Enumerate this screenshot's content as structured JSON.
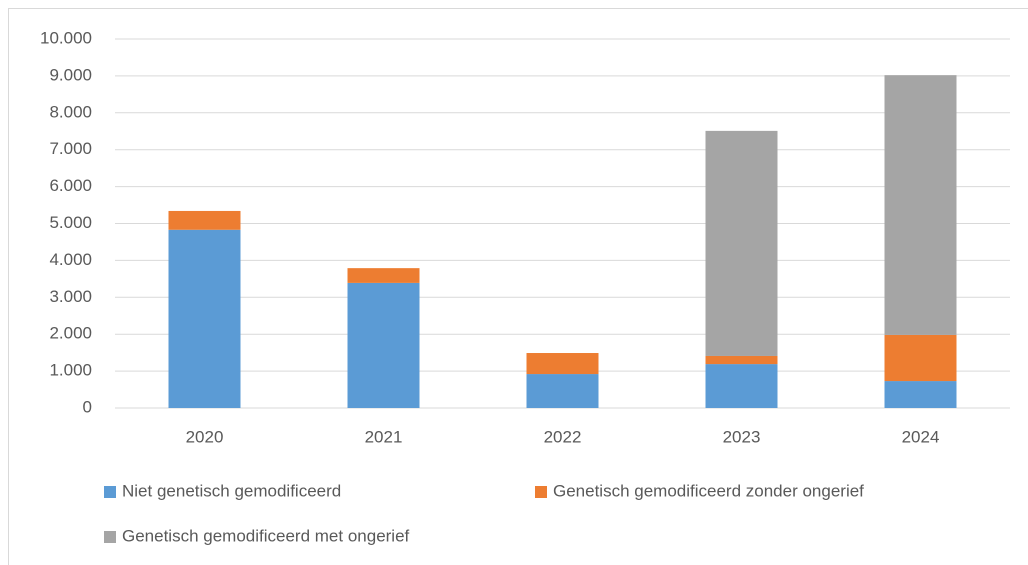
{
  "chart_data": {
    "type": "stacked_bar",
    "categories": [
      "2020",
      "2021",
      "2022",
      "2023",
      "2024"
    ],
    "series": [
      {
        "name": "Niet genetisch gemodificeerd",
        "color": "#5b9bd5",
        "values": [
          4830,
          3390,
          920,
          1190,
          730
        ]
      },
      {
        "name": "Genetisch gemodificeerd zonder ongerief",
        "color": "#ed7d31",
        "values": [
          510,
          400,
          570,
          220,
          1250
        ]
      },
      {
        "name": "Genetisch gemodificeerd met ongerief",
        "color": "#a5a5a5",
        "values": [
          0,
          0,
          0,
          6100,
          7040
        ]
      }
    ],
    "ylim": [
      0,
      10000
    ],
    "yticks": [
      0,
      {
        "value": 1000,
        "label": "1.000"
      },
      {
        "value": 2000,
        "label": "2.000"
      },
      {
        "value": 3000,
        "label": "3.000"
      },
      {
        "value": 4000,
        "label": "4.000"
      },
      {
        "value": 5000,
        "label": "5.000"
      },
      {
        "value": 6000,
        "label": "6.000"
      },
      {
        "value": 7000,
        "label": "7.000"
      },
      {
        "value": 8000,
        "label": "8.000"
      },
      {
        "value": 9000,
        "label": "9.000"
      },
      {
        "value": 10000,
        "label": "10.000"
      }
    ],
    "grid": true
  }
}
